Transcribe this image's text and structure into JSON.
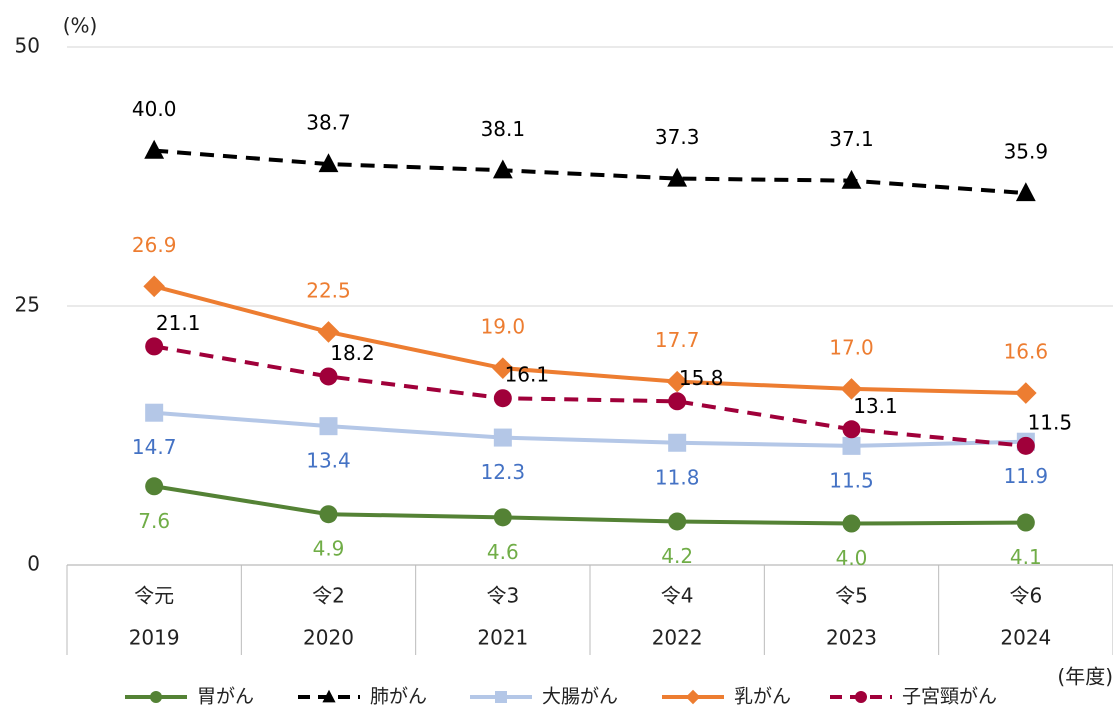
{
  "chart_data": {
    "type": "line",
    "y_unit": "(%)",
    "x_unit": "(年度)",
    "categories": [
      [
        "令元",
        "2019"
      ],
      [
        "令2",
        "2020"
      ],
      [
        "令3",
        "2021"
      ],
      [
        "令4",
        "2022"
      ],
      [
        "令5",
        "2023"
      ],
      [
        "令6",
        "2024"
      ]
    ],
    "ylim": [
      0,
      50
    ],
    "yticks": [
      0,
      25,
      50
    ],
    "grid": true,
    "legend": "bottom",
    "series": [
      {
        "name": "胃がん",
        "color": "#548235",
        "label_color": "#70ad47",
        "marker": "circle",
        "dash": false,
        "label_pos": "below",
        "values": [
          7.6,
          4.9,
          4.6,
          4.2,
          4.0,
          4.1
        ],
        "value_labels": [
          "7.6",
          "4.9",
          "4.6",
          "4.2",
          "4.0",
          "4.1"
        ]
      },
      {
        "name": "肺がん",
        "color": "#000000",
        "label_color": "#000000",
        "marker": "triangle",
        "dash": true,
        "label_pos": "above",
        "values": [
          40.0,
          38.7,
          38.1,
          37.3,
          37.1,
          35.9
        ],
        "value_labels": [
          "40.0",
          "38.7",
          "38.1",
          "37.3",
          "37.1",
          "35.9"
        ]
      },
      {
        "name": "大腸がん",
        "color": "#b4c7e7",
        "label_color": "#4472c4",
        "marker": "square",
        "dash": false,
        "label_pos": "below",
        "values": [
          14.7,
          13.4,
          12.3,
          11.8,
          11.5,
          11.9
        ],
        "value_labels": [
          "14.7",
          "13.4",
          "12.3",
          "11.8",
          "11.5",
          "11.9"
        ]
      },
      {
        "name": "乳がん",
        "color": "#ed7d31",
        "label_color": "#ed7d31",
        "marker": "diamond",
        "dash": false,
        "label_pos": "above",
        "values": [
          26.9,
          22.5,
          19.0,
          17.7,
          17.0,
          16.6
        ],
        "value_labels": [
          "26.9",
          "22.5",
          "19.0",
          "17.7",
          "17.0",
          "16.6"
        ]
      },
      {
        "name": "子宮頸がん",
        "color": "#a0003a",
        "label_color": "#000000",
        "marker": "circle",
        "dash": true,
        "label_pos": "above-right",
        "values": [
          21.1,
          18.2,
          16.1,
          15.8,
          13.1,
          11.5
        ],
        "value_labels": [
          "21.1",
          "18.2",
          "16.1",
          "15.8",
          "13.1",
          "11.5"
        ]
      }
    ]
  }
}
